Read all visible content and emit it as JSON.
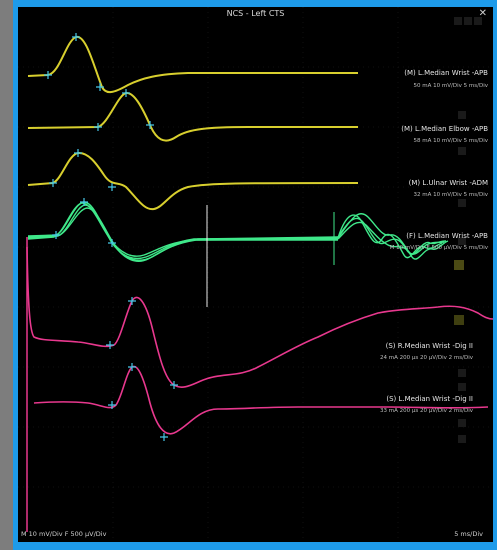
{
  "window": {
    "title": "NCS - Left CTS"
  },
  "traces": [
    {
      "label": "(M) L.Median  Wrist -APB",
      "settings": "50 mA  10 mV/Div  5 ms/Div",
      "color": "#d8cf2e"
    },
    {
      "label": "(M) L.Median  Elbow -APB",
      "settings": "58 mA  10 mV/Div  5 ms/Div",
      "color": "#d8cf2e"
    },
    {
      "label": "(M) L.Ulnar  Wrist -ADM",
      "settings": "32 mA  10 mV/Div  5 ms/Div",
      "color": "#d8cf2e"
    },
    {
      "label": "(F) L.Median  Wrist -APB",
      "settings": "M  10 mV/Div  F  500 µV/Div  5 ms/Div",
      "color": "#3fe88a"
    },
    {
      "label": "(S) R.Median  Wrist -Dig II",
      "settings": "24 mA  200 µs  20 µV/Div  2 ms/Div",
      "color": "#e8388e"
    },
    {
      "label": "(S) L.Median  Wrist -Dig II",
      "settings": "33 mA  200 µs  20 µV/Div  2 ms/Div",
      "color": "#e8388e"
    }
  ],
  "marker_color": "#46c8e8",
  "footer": {
    "left": "M  10 mV/Div   F  500 µV/Div",
    "right": "5 ms/Div"
  }
}
